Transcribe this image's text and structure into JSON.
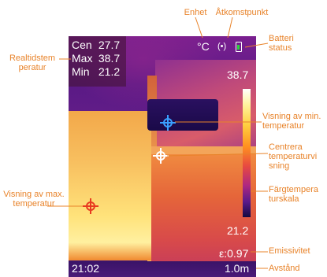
{
  "callouts": {
    "enhet": "Enhet",
    "atkomstpunkt": "Åtkomstpunkt",
    "batteri": "Batteri\nstatus",
    "realtid": "Realtidstem\nperatur",
    "min_view": "Visning av min.\ntemperatur",
    "center_view": "Centrera\ntemperaturvi\nsning",
    "max_view": "Visning av max.\ntemperatur",
    "color_scale": "Färgtempera\nturskala",
    "emissivitet": "Emissivitet",
    "avstand": "Avstånd"
  },
  "readout": {
    "rows": [
      {
        "label": "Cen",
        "value": "27.7"
      },
      {
        "label": "Max",
        "value": "38.7"
      },
      {
        "label": "Min",
        "value": "21.2"
      }
    ]
  },
  "hud": {
    "unit": "°C",
    "wifi_icon": "wifi-icon",
    "battery_icon": "battery-icon",
    "battery_color": "#29d83a",
    "scale_max": "38.7",
    "scale_min": "21.2",
    "emissivity": "ε:0.97",
    "distance": "1.0m",
    "time": "21:02"
  },
  "colors": {
    "callout": "#e8832a",
    "min_marker": "#3aa0ff",
    "max_marker": "#e83a20",
    "center_marker": "#ffffff"
  }
}
